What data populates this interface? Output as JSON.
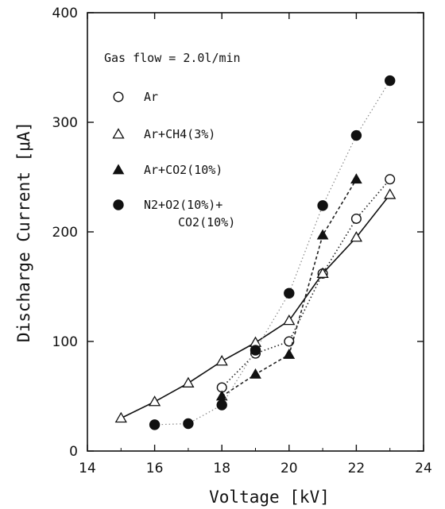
{
  "chart_data": {
    "type": "line",
    "xlabel": "Voltage [kV]",
    "ylabel": "Discharge Current [μA]",
    "xlim": [
      14,
      24
    ],
    "ylim": [
      0,
      400
    ],
    "x_ticks": [
      "14",
      "16",
      "18",
      "20",
      "22",
      "24"
    ],
    "y_ticks": [
      "0",
      "100",
      "200",
      "300",
      "400"
    ],
    "grid": false,
    "legend_placement": "top-left",
    "annotation": "Gas flow = 2.0l/min",
    "series": [
      {
        "name": "Ar",
        "marker": "open-circle",
        "line": "dotted",
        "x": [
          18,
          19,
          20,
          21,
          22,
          23
        ],
        "y": [
          58,
          89,
          100,
          162,
          212,
          248
        ]
      },
      {
        "name": "Ar+CH4(3%)",
        "marker": "open-triangle",
        "line": "solid",
        "x": [
          15,
          16,
          17,
          18,
          19,
          20,
          21,
          22,
          23
        ],
        "y": [
          30,
          45,
          62,
          82,
          99,
          119,
          162,
          195,
          234
        ]
      },
      {
        "name": "Ar+CO2(10%)",
        "marker": "filled-triangle",
        "line": "dashed",
        "x": [
          18,
          19,
          20,
          21,
          22
        ],
        "y": [
          50,
          70,
          88,
          197,
          248
        ]
      },
      {
        "name": "N2+O2(10%)+ CO2(10%)",
        "name_lines": [
          "N2+O2(10%)+",
          "CO2(10%)"
        ],
        "marker": "filled-circle",
        "line": "faint-dotted",
        "x": [
          16,
          17,
          18,
          19,
          20,
          21,
          22,
          23
        ],
        "y": [
          24,
          25,
          42,
          92,
          144,
          224,
          288,
          338
        ]
      }
    ]
  }
}
